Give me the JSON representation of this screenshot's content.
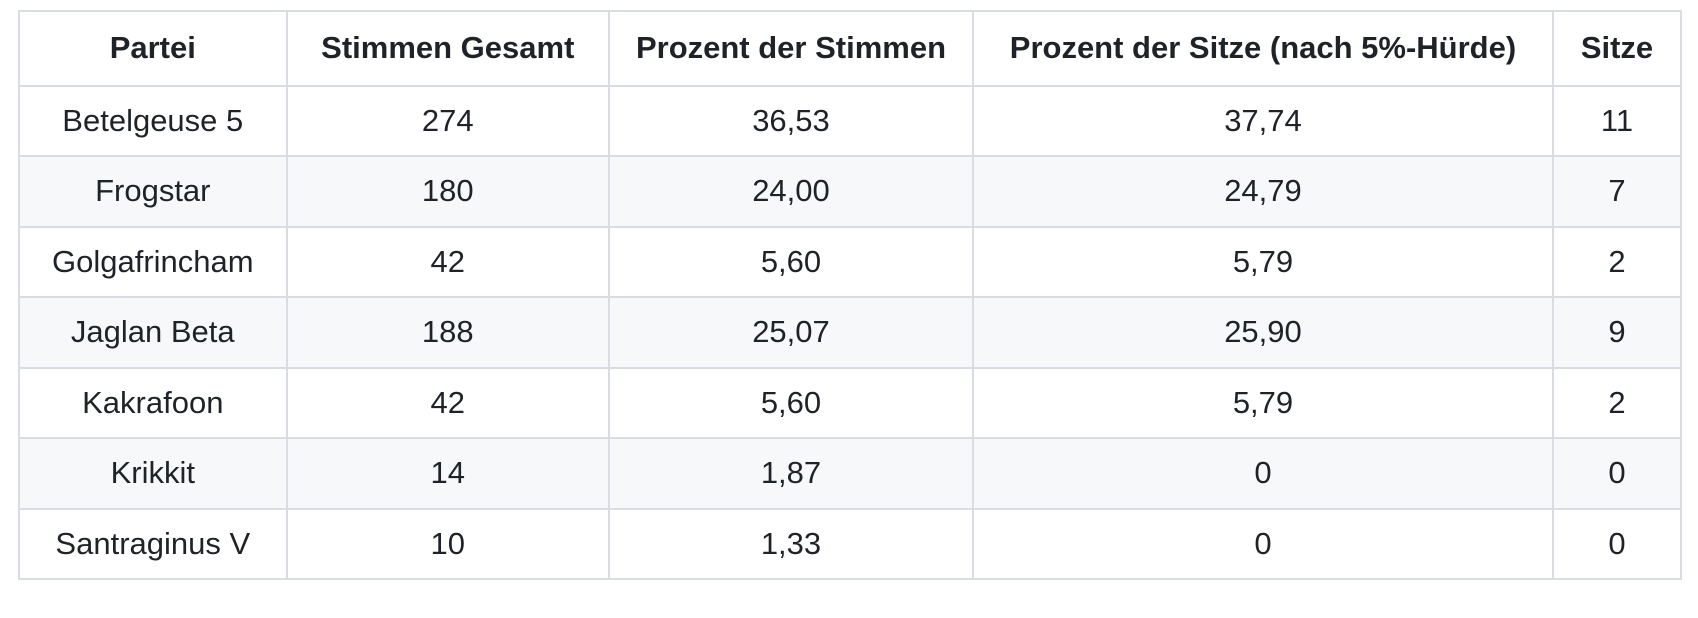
{
  "colors": {
    "background": "#ffffff",
    "border": "#d9dde3",
    "stripe": "#f6f8fa",
    "text": "#1f2328"
  },
  "table": {
    "columns": [
      {
        "label": "Partei"
      },
      {
        "label": "Stimmen Gesamt"
      },
      {
        "label": "Prozent der Stimmen"
      },
      {
        "label": "Prozent der Sitze (nach 5%-Hürde)"
      },
      {
        "label": "Sitze"
      }
    ],
    "rows": [
      [
        "Betelgeuse 5",
        "274",
        "36,53",
        "37,74",
        "11"
      ],
      [
        "Frogstar",
        "180",
        "24,00",
        "24,79",
        "7"
      ],
      [
        "Golgafrincham",
        "42",
        "5,60",
        "5,79",
        "2"
      ],
      [
        "Jaglan Beta",
        "188",
        "25,07",
        "25,90",
        "9"
      ],
      [
        "Kakrafoon",
        "42",
        "5,60",
        "5,79",
        "2"
      ],
      [
        "Krikkit",
        "14",
        "1,87",
        "0",
        "0"
      ],
      [
        "Santraginus V",
        "10",
        "1,33",
        "0",
        "0"
      ]
    ]
  }
}
